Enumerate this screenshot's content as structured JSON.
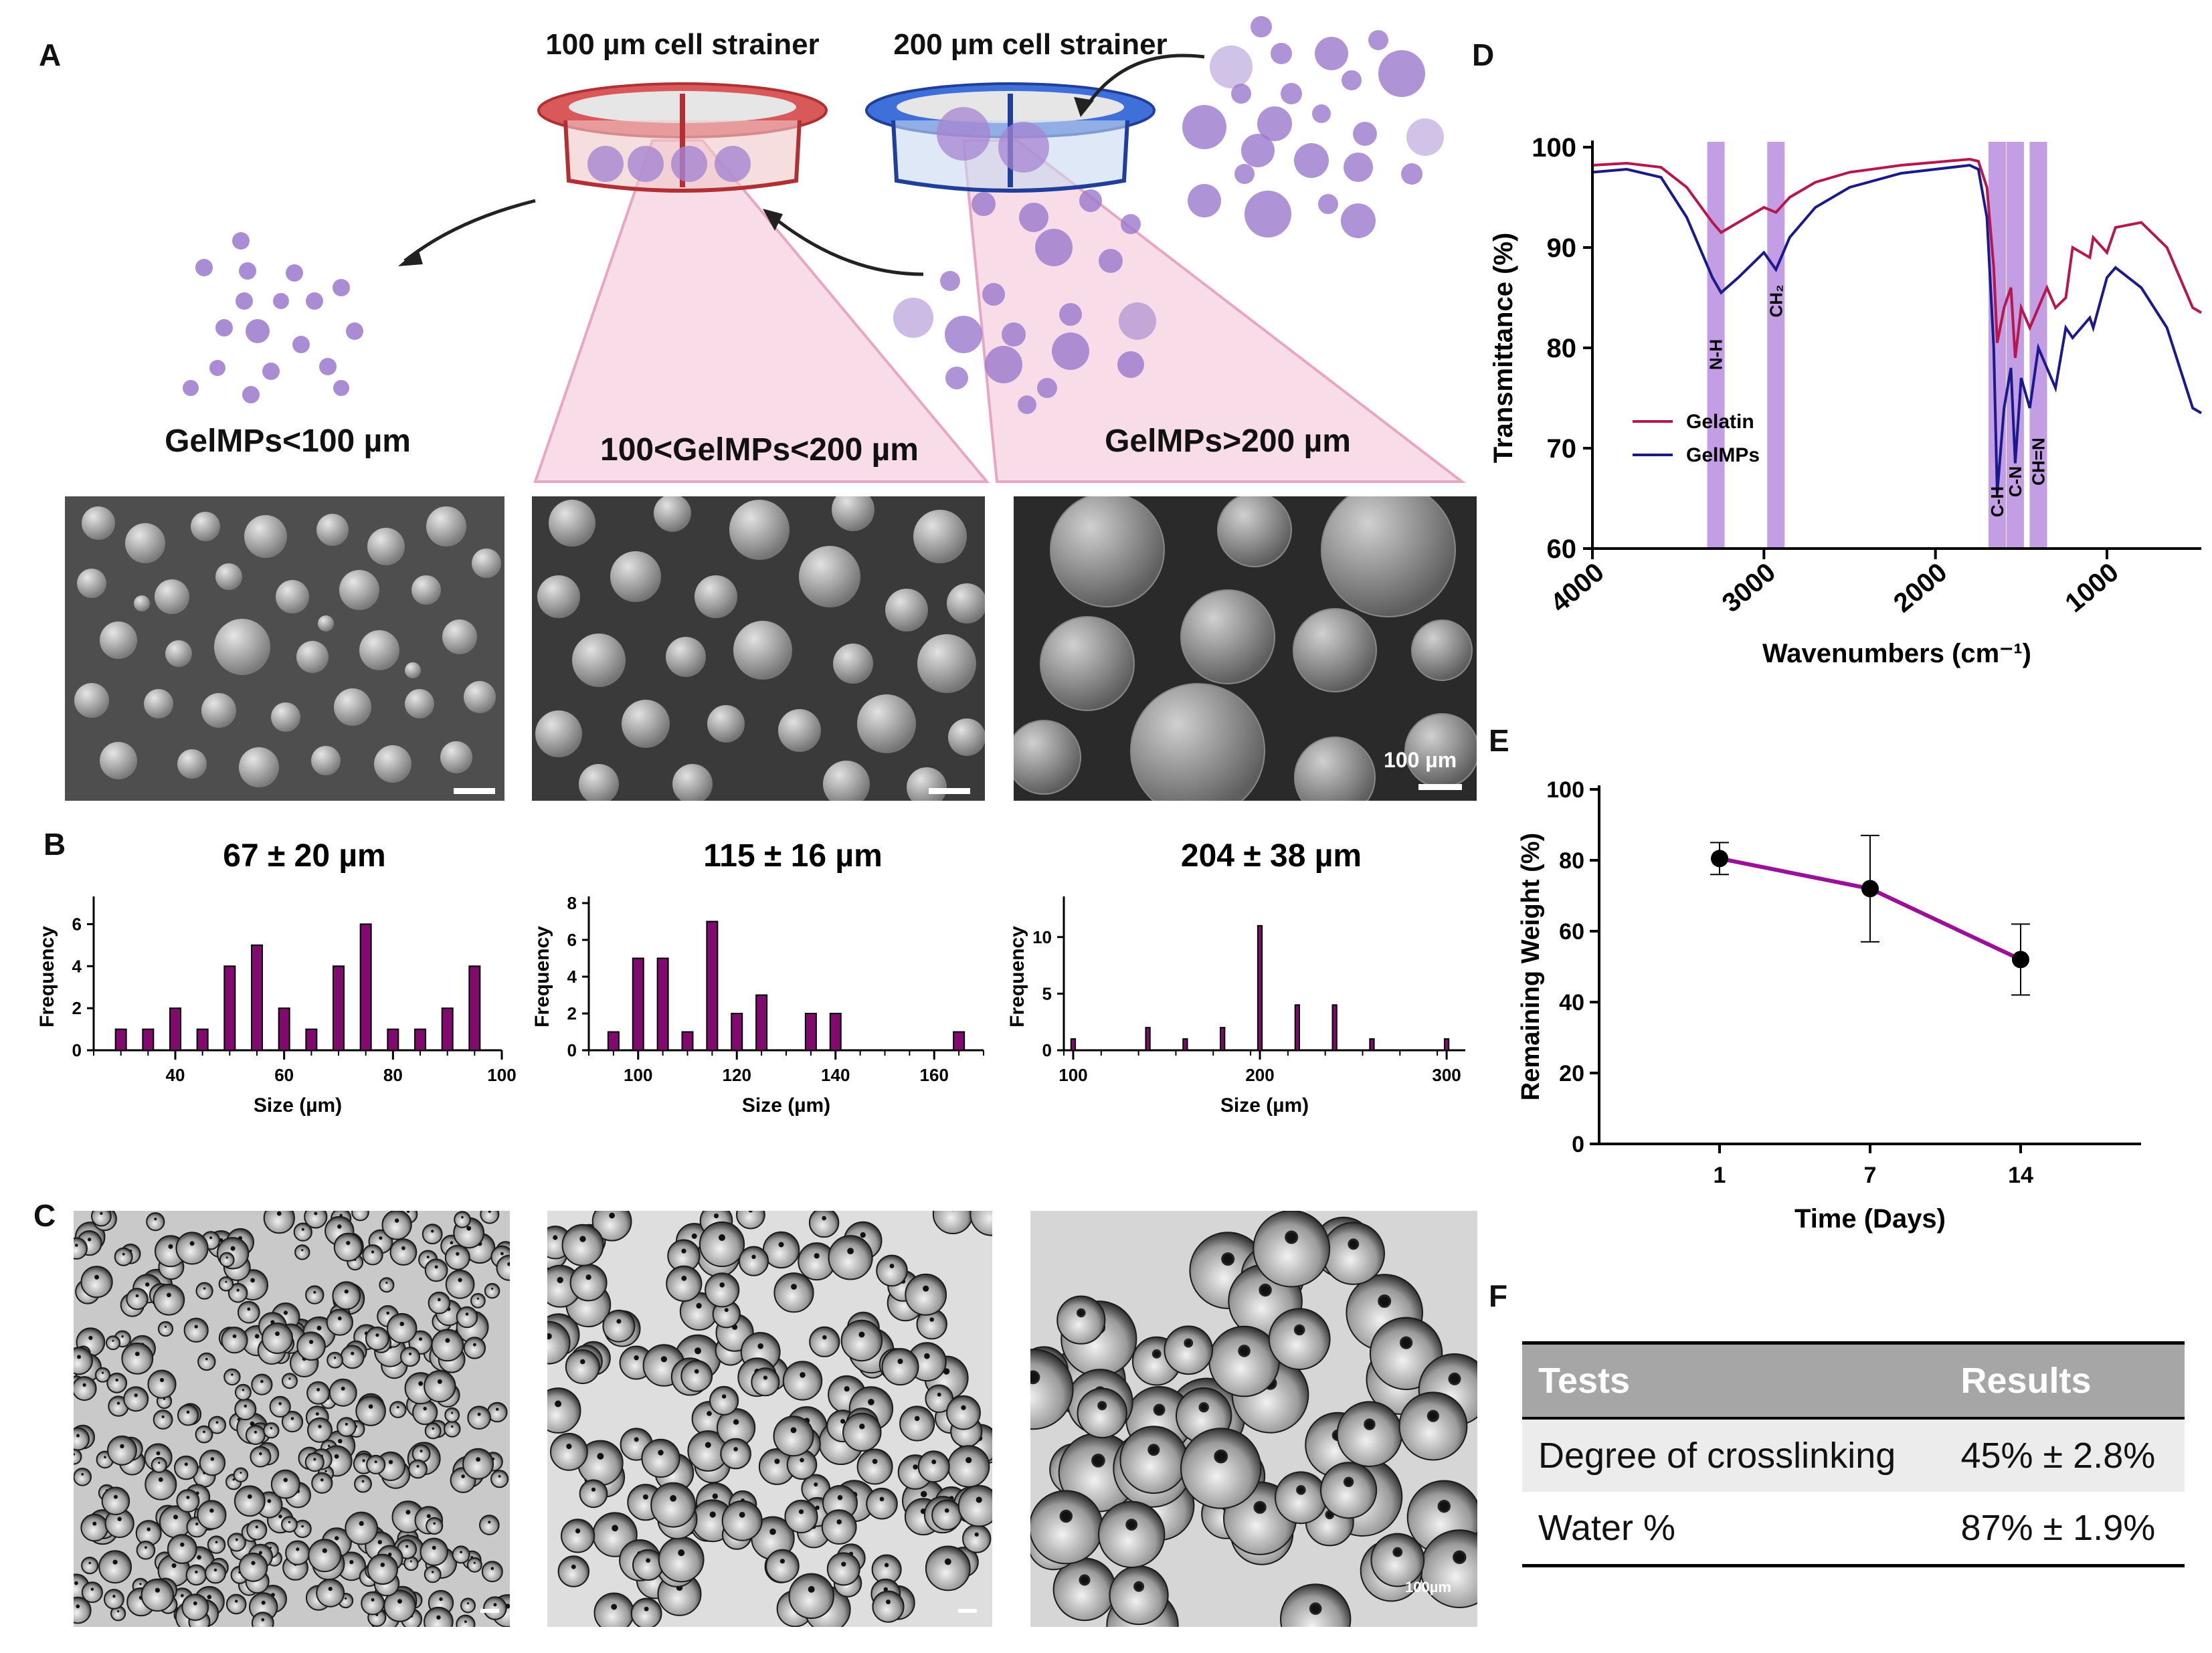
{
  "panel_labels": {
    "A": "A",
    "B": "B",
    "C": "C",
    "D": "D",
    "E": "E",
    "F": "F"
  },
  "schematic": {
    "strainer_100": "100 µm cell strainer",
    "strainer_200": "200 µm cell strainer",
    "group_small": "GelMPs<100 µm",
    "group_mid": "100<GelMPs<200 µm",
    "group_large": "GelMPs>200 µm"
  },
  "sem_scale_label": "100 µm",
  "lm_scale_label": "100µm",
  "colors": {
    "bar": "#800a6e",
    "gelatin": "#b5174e",
    "gelmps": "#1a1a8c",
    "band": "#b98de0",
    "line_e": "#9b0f9b",
    "table_header": "#a6a6a6",
    "table_row": "#ececec"
  },
  "chart_data": [
    {
      "type": "bar",
      "panel": "B-1",
      "title": "67 ± 20 µm",
      "xlabel": "Size (µm)",
      "ylabel": "Frequency",
      "xlim": [
        25,
        100
      ],
      "ylim": [
        0,
        7
      ],
      "xticks": [
        40,
        60,
        80,
        100
      ],
      "yticks": [
        0,
        2,
        4,
        6
      ],
      "x": [
        30,
        35,
        40,
        45,
        50,
        55,
        60,
        65,
        70,
        75,
        80,
        85,
        90,
        95
      ],
      "values": [
        1,
        1,
        2,
        1,
        4,
        5,
        2,
        1,
        4,
        6,
        1,
        1,
        2,
        4
      ]
    },
    {
      "type": "bar",
      "panel": "B-2",
      "title": "115 ± 16 µm",
      "xlabel": "Size (µm)",
      "ylabel": "Frequency",
      "xlim": [
        90,
        170
      ],
      "ylim": [
        0,
        8
      ],
      "xticks": [
        100,
        120,
        140,
        160
      ],
      "yticks": [
        0,
        2,
        4,
        6,
        8
      ],
      "x": [
        95,
        100,
        105,
        110,
        115,
        120,
        125,
        135,
        140,
        165
      ],
      "values": [
        1,
        5,
        5,
        1,
        7,
        2,
        3,
        2,
        2,
        1
      ]
    },
    {
      "type": "bar",
      "panel": "B-3",
      "title": "204 ± 38 µm",
      "xlabel": "Size (µm)",
      "ylabel": "Frequency",
      "xlim": [
        95,
        310
      ],
      "ylim": [
        0,
        13
      ],
      "xticks": [
        100,
        200,
        300
      ],
      "yticks": [
        0,
        5,
        10
      ],
      "x": [
        100,
        140,
        160,
        180,
        200,
        220,
        240,
        260,
        300
      ],
      "values": [
        1,
        2,
        1,
        2,
        11,
        4,
        4,
        1,
        1
      ]
    },
    {
      "type": "line",
      "panel": "D",
      "xlabel": "Wavenumbers (cm⁻¹)",
      "ylabel": "Transmittance (%)",
      "xlim": [
        4000,
        450
      ],
      "ylim": [
        60,
        100
      ],
      "xticks": [
        4000,
        3000,
        2000,
        1000
      ],
      "yticks": [
        60,
        70,
        80,
        90,
        100
      ],
      "bands": [
        {
          "label": "N-H",
          "center": 3280
        },
        {
          "label": "CH₂",
          "center": 2930
        },
        {
          "label": "C-H",
          "center": 1640
        },
        {
          "label": "C-N",
          "center": 1535
        },
        {
          "label": "CH=N",
          "center": 1400
        }
      ],
      "series": [
        {
          "name": "Gelatin",
          "x": [
            4000,
            3800,
            3600,
            3450,
            3300,
            3250,
            3150,
            3000,
            2930,
            2850,
            2700,
            2500,
            2200,
            2000,
            1800,
            1750,
            1700,
            1660,
            1640,
            1600,
            1560,
            1535,
            1500,
            1450,
            1400,
            1350,
            1300,
            1240,
            1200,
            1100,
            1080,
            1000,
            950,
            800,
            650,
            500,
            450
          ],
          "y": [
            98.2,
            98.4,
            98,
            96,
            92.5,
            91.5,
            92.5,
            94,
            93.5,
            95,
            96.5,
            97.5,
            98.2,
            98.5,
            98.8,
            98.6,
            96,
            88,
            80.5,
            84,
            86,
            79,
            84,
            82,
            84,
            86,
            84,
            85,
            90,
            89,
            91,
            89.5,
            92,
            92.5,
            90,
            84,
            83.5
          ]
        },
        {
          "name": "GelMPs",
          "x": [
            4000,
            3800,
            3600,
            3450,
            3300,
            3250,
            3150,
            3000,
            2930,
            2850,
            2700,
            2500,
            2200,
            2000,
            1800,
            1750,
            1700,
            1660,
            1640,
            1600,
            1560,
            1535,
            1500,
            1450,
            1400,
            1350,
            1300,
            1240,
            1200,
            1100,
            1080,
            1000,
            950,
            800,
            650,
            500,
            450
          ],
          "y": [
            97.5,
            97.8,
            97,
            93,
            87,
            85.5,
            87,
            89.5,
            87.8,
            91,
            94,
            96,
            97.4,
            97.8,
            98.2,
            97.8,
            93,
            80,
            65.5,
            74,
            78,
            68.5,
            77,
            74,
            80,
            78,
            76,
            82,
            81,
            83,
            82,
            87,
            88,
            86,
            82,
            74,
            73.5
          ]
        }
      ],
      "legend": "middle-left"
    },
    {
      "type": "line",
      "panel": "E",
      "xlabel": "Time (Days)",
      "ylabel": "Remaining Weight (%)",
      "categories": [
        "1",
        "7",
        "14"
      ],
      "ylim": [
        0,
        100
      ],
      "yticks": [
        0,
        20,
        40,
        60,
        80,
        100
      ],
      "series": [
        {
          "values": [
            80.5,
            72,
            52
          ],
          "error": [
            4.5,
            15,
            10
          ]
        }
      ]
    },
    {
      "type": "table",
      "panel": "F",
      "headers": [
        "Tests",
        "Results"
      ],
      "rows": [
        [
          "Degree of crosslinking",
          "45% ± 2.8%"
        ],
        [
          "Water %",
          "87% ± 1.9%"
        ]
      ]
    }
  ]
}
